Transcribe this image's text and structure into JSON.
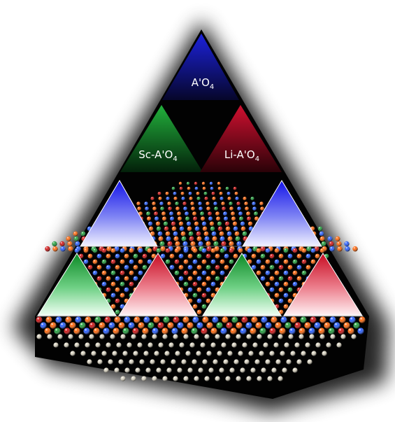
{
  "labels": [
    {
      "id": "aprime",
      "base": "A'O",
      "sub": "4"
    },
    {
      "id": "sc",
      "base": "Sc-A'O",
      "sub": "4"
    },
    {
      "id": "li",
      "base": "Li-A'O",
      "sub": "4"
    }
  ],
  "colors": {
    "blue": "#1e22d8",
    "green": "#1fa23a",
    "red": "#c8102e",
    "silver": "#d8d2c0",
    "orange": "#ff6a10",
    "atom_blue": "#2a60ff",
    "atom_green": "#26a040",
    "atom_red": "#d01818"
  },
  "icons": [
    "blue-triangle",
    "green-triangle",
    "red-triangle",
    "atom-sphere"
  ]
}
